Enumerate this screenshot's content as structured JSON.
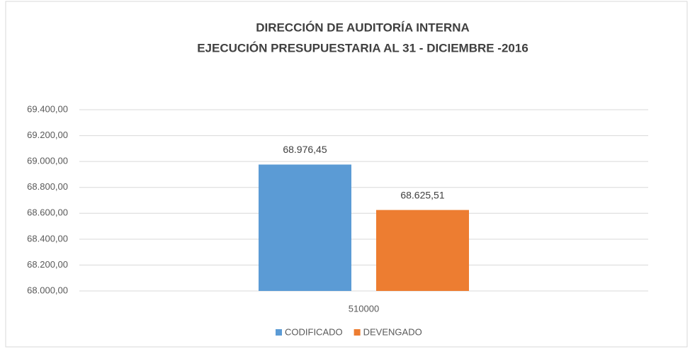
{
  "chart_data": {
    "type": "bar",
    "title": "DIRECCIÓN DE AUDITORÍA INTERNA",
    "subtitle": "EJECUCIÓN PRESUPUESTARIA AL 31 - DICIEMBRE -2016",
    "categories": [
      "510000"
    ],
    "series": [
      {
        "name": "CODIFICADO",
        "color": "#5b9bd5",
        "values": [
          68976.45
        ],
        "value_labels": [
          "68.976,45"
        ]
      },
      {
        "name": "DEVENGADO",
        "color": "#ed7d31",
        "values": [
          68625.51
        ],
        "value_labels": [
          "68.625,51"
        ]
      }
    ],
    "ylim": [
      68000,
      69400
    ],
    "yticks": [
      {
        "value": 68000,
        "label": "68.000,00"
      },
      {
        "value": 68200,
        "label": "68.200,00"
      },
      {
        "value": 68400,
        "label": "68.400,00"
      },
      {
        "value": 68600,
        "label": "68.600,00"
      },
      {
        "value": 68800,
        "label": "68.800,00"
      },
      {
        "value": 69000,
        "label": "69.000,00"
      },
      {
        "value": 69200,
        "label": "69.200,00"
      },
      {
        "value": 69400,
        "label": "69.400,00"
      }
    ],
    "grid": true,
    "legend": "bottom"
  }
}
